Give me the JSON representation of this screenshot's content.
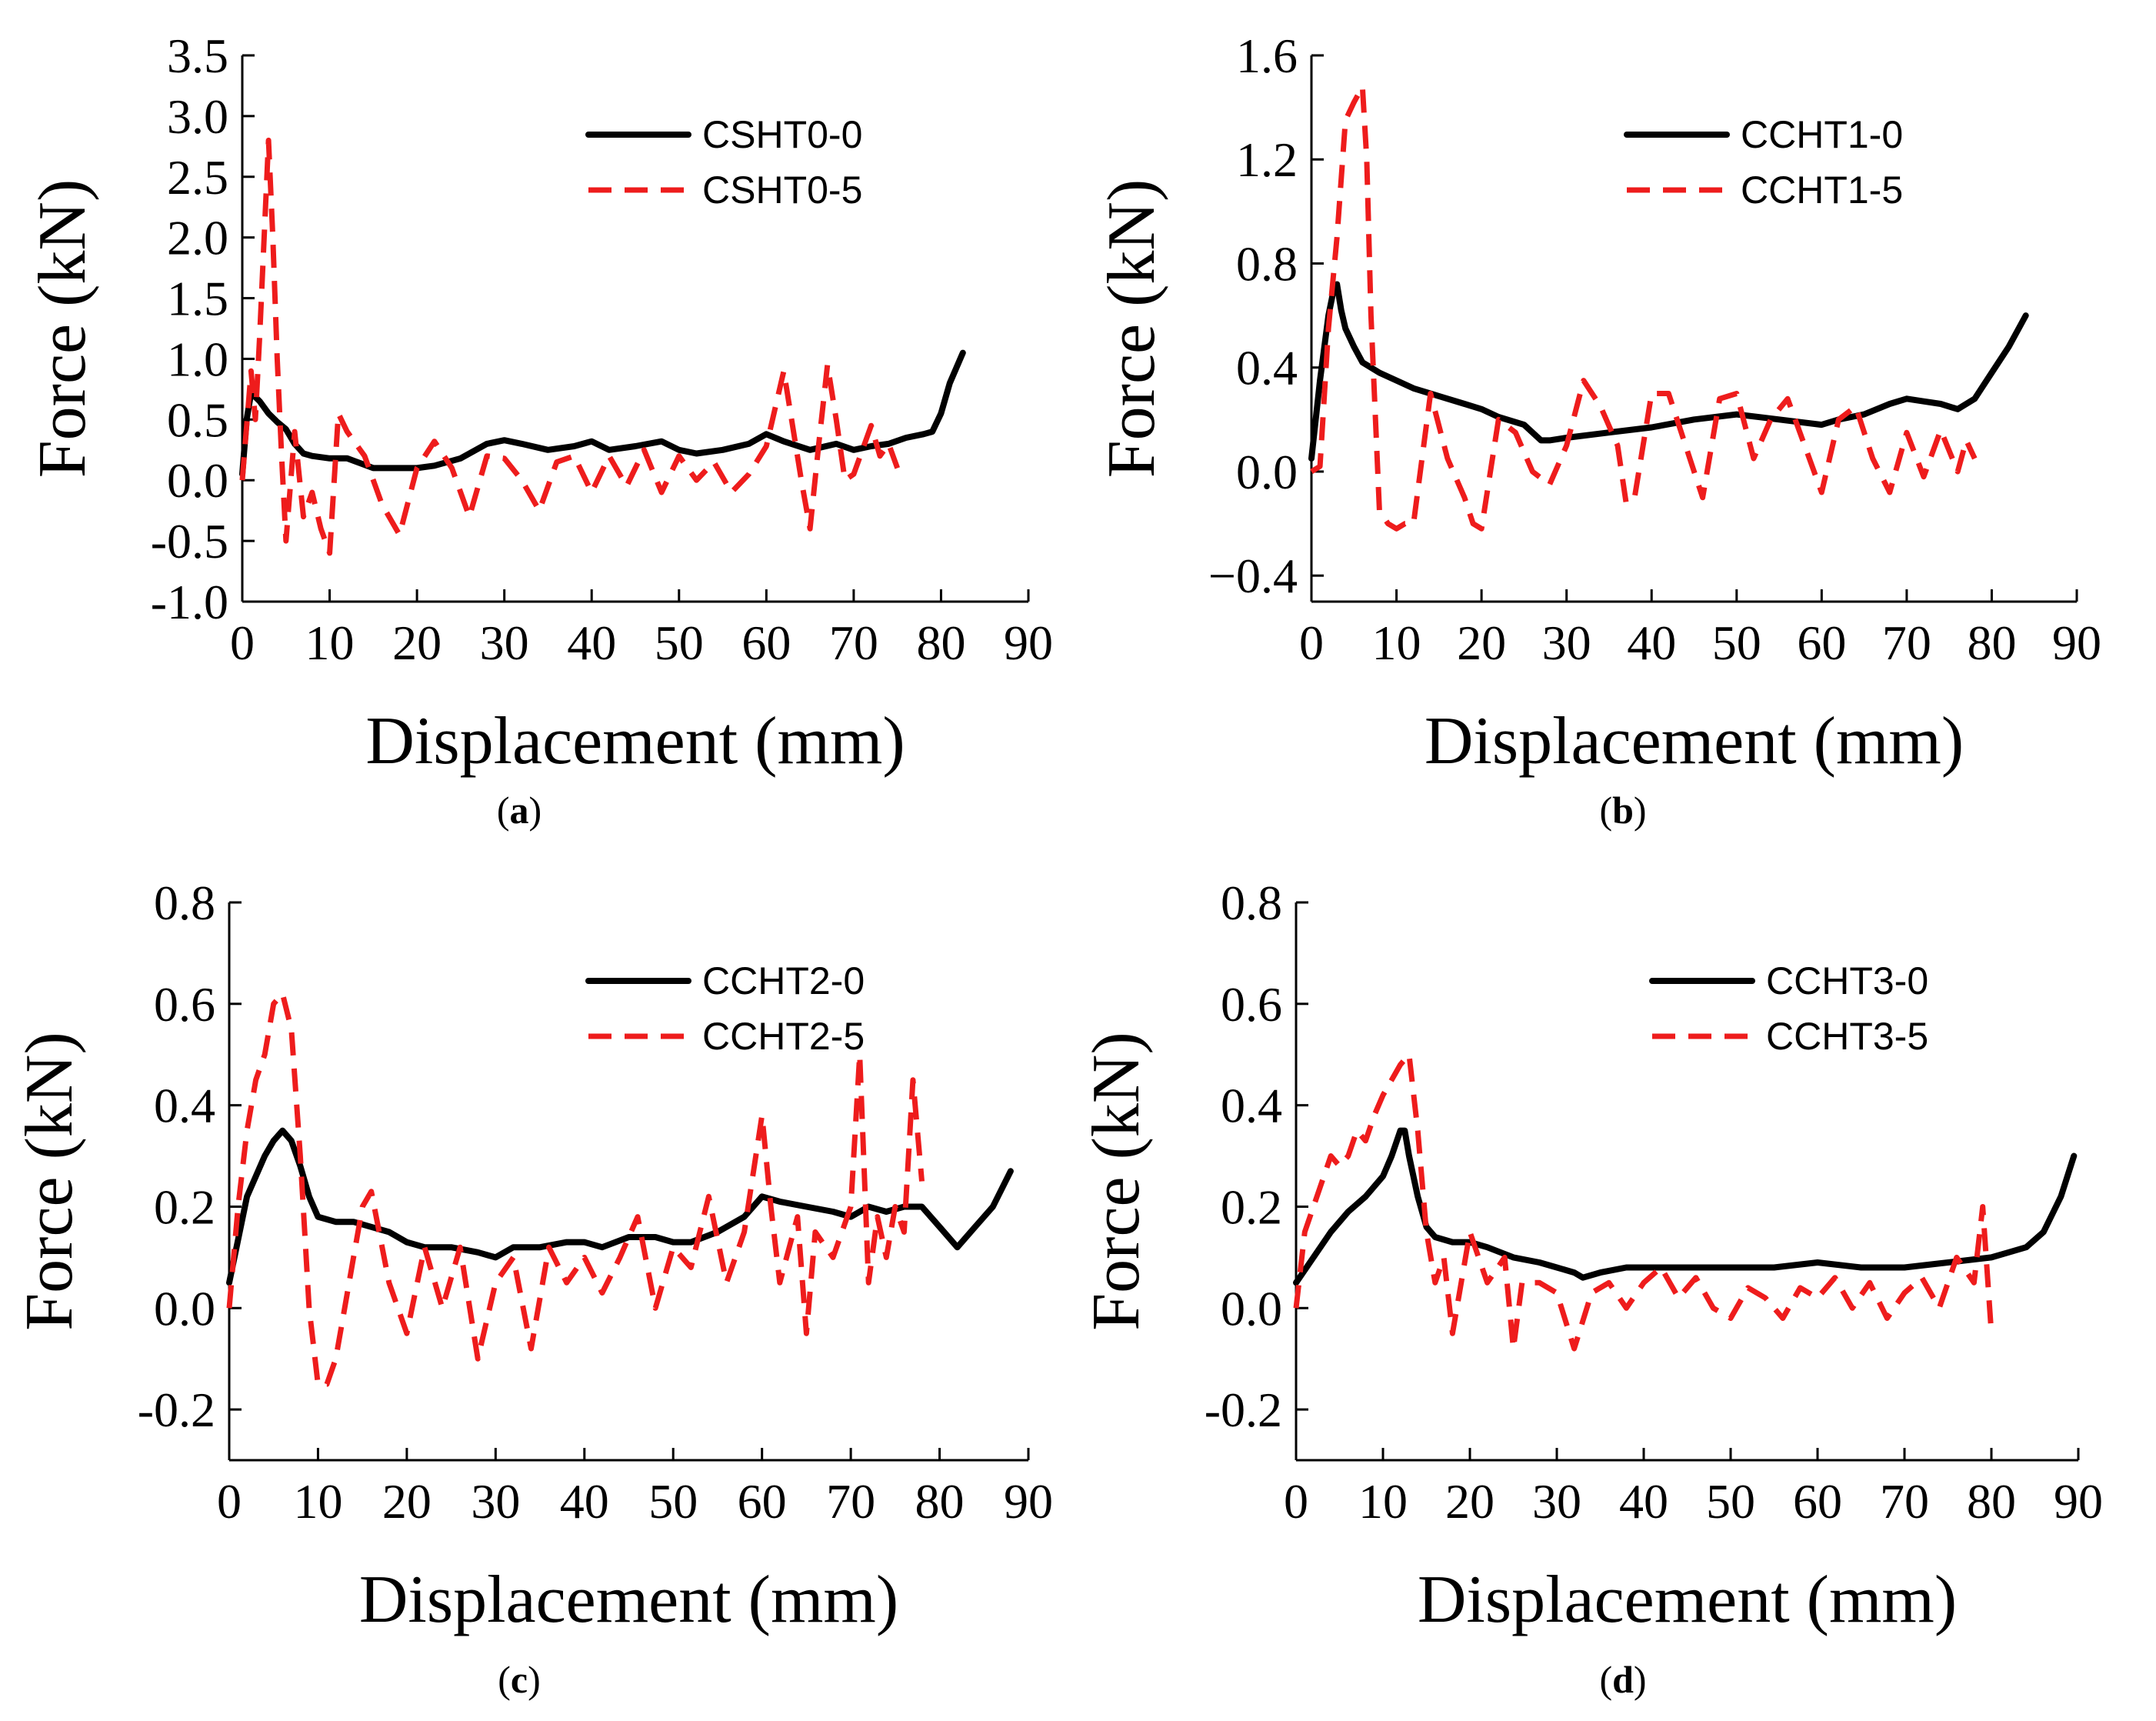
{
  "chart_data": [
    {
      "panel": "(a)",
      "panel_letter": "a",
      "type": "line",
      "xlabel": "Displacement (mm)",
      "ylabel": "Force (kN)",
      "xlim": [
        0,
        90
      ],
      "ylim": [
        -1.0,
        3.5
      ],
      "xticks": [
        0,
        10,
        20,
        30,
        40,
        50,
        60,
        70,
        80,
        90
      ],
      "xtick_labels": [
        "0",
        "10",
        "20",
        "30",
        "40",
        "50",
        "60",
        "70",
        "80",
        "90"
      ],
      "yticks": [
        -1.0,
        -0.5,
        0.0,
        0.5,
        1.0,
        1.5,
        2.0,
        2.5,
        3.0,
        3.5
      ],
      "ytick_labels": [
        "-1.0",
        "-0.5",
        "0.0",
        "0.5",
        "1.0",
        "1.5",
        "2.0",
        "2.5",
        "3.0",
        "3.5"
      ],
      "legend": "top-right",
      "series": [
        {
          "name": "CSHT0-0",
          "style": "solid",
          "color": "#000000",
          "x": [
            0,
            0.5,
            1,
            2,
            3,
            4,
            5,
            6,
            7,
            8,
            10,
            12,
            15,
            18,
            20,
            22,
            25,
            28,
            30,
            32,
            35,
            38,
            40,
            42,
            45,
            48,
            50,
            52,
            55,
            58,
            60,
            62,
            65,
            68,
            70,
            72,
            74,
            76,
            78,
            79,
            80,
            81,
            82.5
          ],
          "y": [
            0.05,
            0.5,
            0.72,
            0.65,
            0.55,
            0.48,
            0.42,
            0.3,
            0.22,
            0.2,
            0.18,
            0.18,
            0.1,
            0.1,
            0.1,
            0.12,
            0.18,
            0.3,
            0.33,
            0.3,
            0.25,
            0.28,
            0.32,
            0.25,
            0.28,
            0.32,
            0.25,
            0.22,
            0.25,
            0.3,
            0.38,
            0.32,
            0.25,
            0.3,
            0.25,
            0.28,
            0.3,
            0.35,
            0.38,
            0.4,
            0.55,
            0.8,
            1.05
          ]
        },
        {
          "name": "CSHT0-5",
          "style": "dashed",
          "color": "#ee1c1c",
          "x": [
            0,
            1,
            1.5,
            2,
            2.5,
            3,
            3.5,
            4,
            4.5,
            5,
            6,
            7,
            8,
            9,
            10,
            11,
            12,
            14,
            16,
            18,
            20,
            22,
            24,
            26,
            28,
            30,
            32,
            34,
            36,
            38,
            40,
            42,
            44,
            46,
            48,
            50,
            52,
            54,
            56,
            58,
            60,
            62,
            64,
            65,
            66,
            67,
            68,
            69,
            70,
            72,
            73,
            74,
            75
          ],
          "y": [
            0,
            0.9,
            0.5,
            1.2,
            2.0,
            2.8,
            2.0,
            1.0,
            0.2,
            -0.5,
            0.4,
            -0.3,
            -0.1,
            -0.4,
            -0.6,
            0.55,
            0.4,
            0.2,
            -0.2,
            -0.45,
            0.1,
            0.32,
            0.1,
            -0.3,
            0.2,
            0.18,
            0.0,
            -0.25,
            0.15,
            0.2,
            -0.1,
            0.2,
            -0.05,
            0.25,
            -0.1,
            0.2,
            0.0,
            0.15,
            -0.1,
            0.05,
            0.28,
            0.9,
            0.0,
            -0.4,
            0.3,
            0.95,
            0.5,
            0.0,
            0.05,
            0.45,
            0.2,
            0.3,
            0.1
          ]
        }
      ]
    },
    {
      "panel": "(b)",
      "panel_letter": "b",
      "type": "line",
      "xlabel": "Displacement (mm)",
      "ylabel": "Force (kN)",
      "xlim": [
        0,
        90
      ],
      "ylim": [
        -0.5,
        1.6
      ],
      "xticks": [
        0,
        10,
        20,
        30,
        40,
        50,
        60,
        70,
        80,
        90
      ],
      "xtick_labels": [
        "0",
        "10",
        "20",
        "30",
        "40",
        "50",
        "60",
        "70",
        "80",
        "90"
      ],
      "yticks": [
        -0.4,
        0.0,
        0.4,
        0.8,
        1.2,
        1.6
      ],
      "ytick_labels": [
        "−0.4",
        "0.0",
        "0.4",
        "0.8",
        "1.2",
        "1.6"
      ],
      "legend": "top-right",
      "series": [
        {
          "name": "CCHT1-0",
          "style": "solid",
          "color": "#000000",
          "x": [
            0,
            1,
            2,
            2.5,
            3,
            3.5,
            4,
            5,
            6,
            8,
            10,
            12,
            15,
            18,
            20,
            22,
            25,
            27,
            28,
            30,
            35,
            40,
            45,
            50,
            55,
            60,
            62,
            65,
            68,
            70,
            72,
            74,
            76,
            78,
            80,
            82,
            84
          ],
          "y": [
            0.05,
            0.35,
            0.6,
            0.68,
            0.72,
            0.62,
            0.55,
            0.48,
            0.42,
            0.38,
            0.35,
            0.32,
            0.29,
            0.26,
            0.24,
            0.21,
            0.18,
            0.12,
            0.12,
            0.13,
            0.15,
            0.17,
            0.2,
            0.22,
            0.2,
            0.18,
            0.2,
            0.22,
            0.26,
            0.28,
            0.27,
            0.26,
            0.24,
            0.28,
            0.38,
            0.48,
            0.6
          ]
        },
        {
          "name": "CCHT1-5",
          "style": "dashed",
          "color": "#ee1c1c",
          "x": [
            0,
            1,
            2,
            3,
            4,
            5,
            6,
            6.5,
            7,
            8,
            9,
            10,
            11,
            12,
            14,
            16,
            18,
            19,
            20,
            22,
            24,
            26,
            28,
            30,
            32,
            34,
            36,
            37,
            38,
            40,
            42,
            44,
            46,
            48,
            50,
            52,
            54,
            56,
            58,
            60,
            62,
            64,
            66,
            68,
            70,
            72,
            74,
            76,
            77,
            78
          ],
          "y": [
            0,
            0.02,
            0.55,
            0.9,
            1.35,
            1.42,
            1.48,
            1.2,
            0.6,
            -0.15,
            -0.2,
            -0.22,
            -0.2,
            -0.2,
            0.3,
            0.05,
            -0.1,
            -0.2,
            -0.22,
            0.2,
            0.15,
            0.0,
            -0.05,
            0.1,
            0.35,
            0.25,
            0.1,
            -0.12,
            -0.1,
            0.3,
            0.3,
            0.1,
            -0.1,
            0.28,
            0.3,
            0.05,
            0.2,
            0.28,
            0.1,
            -0.08,
            0.2,
            0.25,
            0.05,
            -0.08,
            0.15,
            -0.02,
            0.16,
            0.0,
            0.12,
            0.05
          ]
        }
      ]
    },
    {
      "panel": "(c)",
      "panel_letter": "c",
      "type": "line",
      "xlabel": "Displacement (mm)",
      "ylabel": "Force (kN)",
      "xlim": [
        0,
        90
      ],
      "ylim": [
        -0.3,
        0.8
      ],
      "xticks": [
        0,
        10,
        20,
        30,
        40,
        50,
        60,
        70,
        80,
        90
      ],
      "xtick_labels": [
        "0",
        "10",
        "20",
        "30",
        "40",
        "50",
        "60",
        "70",
        "80",
        "90"
      ],
      "yticks": [
        -0.2,
        0.0,
        0.2,
        0.4,
        0.6,
        0.8
      ],
      "ytick_labels": [
        "-0.2",
        "0.0",
        "0.2",
        "0.4",
        "0.6",
        "0.8"
      ],
      "legend": "top-right",
      "series": [
        {
          "name": "CCHT2-0",
          "style": "solid",
          "color": "#000000",
          "x": [
            0,
            2,
            4,
            5,
            6,
            7,
            8,
            9,
            10,
            12,
            14,
            16,
            18,
            20,
            22,
            25,
            28,
            30,
            32,
            35,
            38,
            40,
            42,
            45,
            48,
            50,
            52,
            55,
            58,
            60,
            62,
            65,
            68,
            70,
            72,
            74,
            76,
            78,
            80,
            82,
            84,
            86,
            88
          ],
          "y": [
            0.05,
            0.22,
            0.3,
            0.33,
            0.35,
            0.33,
            0.28,
            0.22,
            0.18,
            0.17,
            0.17,
            0.16,
            0.15,
            0.13,
            0.12,
            0.12,
            0.11,
            0.1,
            0.12,
            0.12,
            0.13,
            0.13,
            0.12,
            0.14,
            0.14,
            0.13,
            0.13,
            0.15,
            0.18,
            0.22,
            0.21,
            0.2,
            0.19,
            0.18,
            0.2,
            0.19,
            0.2,
            0.2,
            0.16,
            0.12,
            0.16,
            0.2,
            0.27
          ]
        },
        {
          "name": "CCHT2-5",
          "style": "dashed",
          "color": "#ee1c1c",
          "x": [
            0,
            1,
            2,
            3,
            4,
            5,
            6,
            7,
            8,
            9,
            10,
            11,
            12,
            13,
            14,
            15,
            16,
            18,
            20,
            22,
            24,
            26,
            28,
            30,
            32,
            34,
            36,
            38,
            40,
            42,
            44,
            46,
            48,
            50,
            52,
            54,
            56,
            58,
            60,
            61,
            62,
            64,
            65,
            66,
            68,
            70,
            71,
            72,
            73,
            74,
            75,
            76,
            77,
            78
          ],
          "y": [
            0,
            0.2,
            0.35,
            0.45,
            0.5,
            0.6,
            0.62,
            0.55,
            0.3,
            0.0,
            -0.15,
            -0.15,
            -0.1,
            0.0,
            0.1,
            0.2,
            0.23,
            0.05,
            -0.05,
            0.12,
            0.0,
            0.12,
            -0.1,
            0.05,
            0.1,
            -0.08,
            0.12,
            0.05,
            0.1,
            0.03,
            0.1,
            0.18,
            0.0,
            0.12,
            0.08,
            0.22,
            0.05,
            0.15,
            0.38,
            0.2,
            0.05,
            0.18,
            -0.05,
            0.15,
            0.1,
            0.2,
            0.5,
            0.05,
            0.18,
            0.1,
            0.2,
            0.15,
            0.45,
            0.25
          ]
        }
      ]
    },
    {
      "panel": "(d)",
      "panel_letter": "d",
      "type": "line",
      "xlabel": "Displacement (mm)",
      "ylabel": "Force (kN)",
      "xlim": [
        0,
        90
      ],
      "ylim": [
        -0.3,
        0.8
      ],
      "xticks": [
        0,
        10,
        20,
        30,
        40,
        50,
        60,
        70,
        80,
        90
      ],
      "xtick_labels": [
        "0",
        "10",
        "20",
        "30",
        "40",
        "50",
        "60",
        "70",
        "80",
        "90"
      ],
      "yticks": [
        -0.2,
        0.0,
        0.2,
        0.4,
        0.6,
        0.8
      ],
      "ytick_labels": [
        "-0.2",
        "0.0",
        "0.2",
        "0.4",
        "0.6",
        "0.8"
      ],
      "legend": "top-right",
      "series": [
        {
          "name": "CCHT3-0",
          "style": "solid",
          "color": "#000000",
          "x": [
            0,
            2,
            4,
            6,
            8,
            10,
            11,
            12,
            12.5,
            13,
            14,
            15,
            16,
            18,
            20,
            22,
            25,
            28,
            30,
            32,
            33,
            35,
            38,
            40,
            45,
            50,
            55,
            60,
            65,
            70,
            75,
            80,
            82,
            84,
            86,
            88,
            89.5
          ],
          "y": [
            0.05,
            0.1,
            0.15,
            0.19,
            0.22,
            0.26,
            0.3,
            0.35,
            0.35,
            0.3,
            0.22,
            0.16,
            0.14,
            0.13,
            0.13,
            0.12,
            0.1,
            0.09,
            0.08,
            0.07,
            0.06,
            0.07,
            0.08,
            0.08,
            0.08,
            0.08,
            0.08,
            0.09,
            0.08,
            0.08,
            0.09,
            0.1,
            0.11,
            0.12,
            0.15,
            0.22,
            0.3
          ]
        },
        {
          "name": "CCHT3-5",
          "style": "dashed",
          "color": "#ee1c1c",
          "x": [
            0,
            1,
            2,
            3,
            4,
            5,
            6,
            7,
            8,
            9,
            10,
            11,
            12,
            13,
            14,
            15,
            16,
            17,
            18,
            20,
            22,
            24,
            25,
            26,
            28,
            30,
            32,
            34,
            36,
            38,
            40,
            42,
            44,
            46,
            48,
            50,
            52,
            54,
            56,
            58,
            60,
            62,
            64,
            66,
            68,
            70,
            72,
            74,
            76,
            78,
            79,
            80
          ],
          "y": [
            0,
            0.15,
            0.2,
            0.25,
            0.3,
            0.28,
            0.3,
            0.35,
            0.33,
            0.38,
            0.42,
            0.45,
            0.48,
            0.5,
            0.35,
            0.15,
            0.05,
            0.1,
            -0.05,
            0.15,
            0.05,
            0.1,
            -0.08,
            0.05,
            0.05,
            0.03,
            -0.08,
            0.03,
            0.05,
            0.0,
            0.05,
            0.08,
            0.02,
            0.06,
            0.0,
            -0.02,
            0.04,
            0.02,
            -0.02,
            0.04,
            0.02,
            0.06,
            0.0,
            0.05,
            -0.02,
            0.03,
            0.06,
            0.0,
            0.1,
            0.05,
            0.2,
            -0.05
          ]
        }
      ]
    }
  ]
}
